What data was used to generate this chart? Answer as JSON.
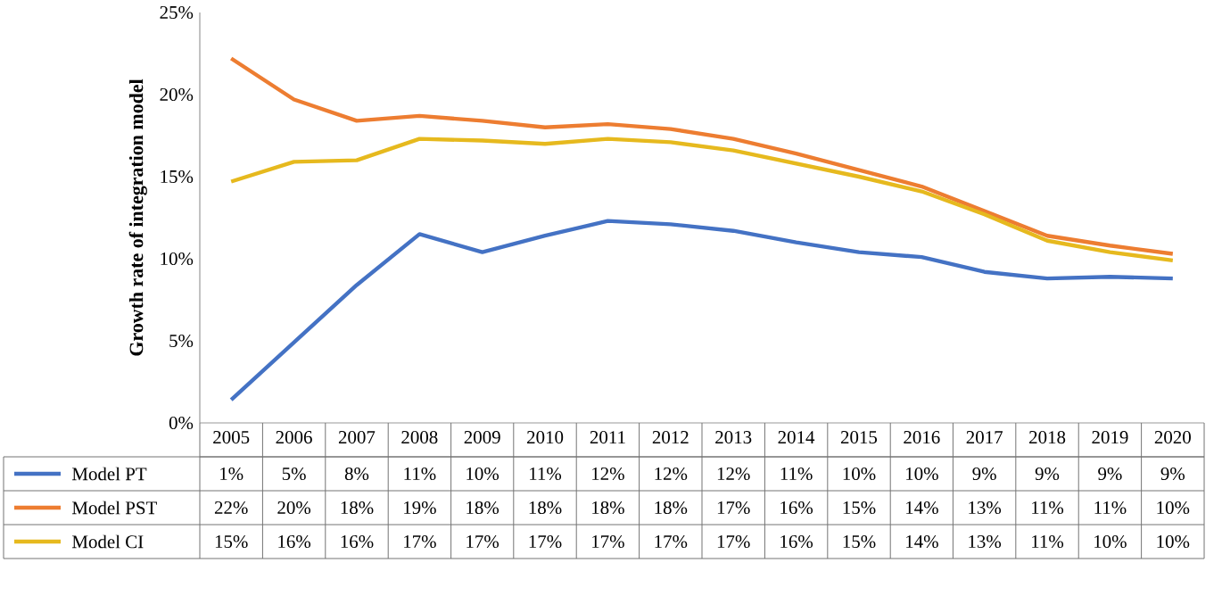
{
  "chart_data": {
    "type": "line",
    "ylabel": "Growth rate of integration model",
    "categories": [
      "2005",
      "2006",
      "2007",
      "2008",
      "2009",
      "2010",
      "2011",
      "2012",
      "2013",
      "2014",
      "2015",
      "2016",
      "2017",
      "2018",
      "2019",
      "2020"
    ],
    "series": [
      {
        "name": "Model PT",
        "color": "#4472c4",
        "values": [
          1.4,
          4.9,
          8.4,
          11.5,
          10.4,
          11.4,
          12.3,
          12.1,
          11.7,
          11.0,
          10.4,
          10.1,
          9.2,
          8.8,
          8.9,
          8.8
        ],
        "value_labels": [
          "1%",
          "5%",
          "8%",
          "11%",
          "10%",
          "11%",
          "12%",
          "12%",
          "12%",
          "11%",
          "10%",
          "10%",
          "9%",
          "9%",
          "9%",
          "9%"
        ]
      },
      {
        "name": "Model PST",
        "color": "#ed7d31",
        "values": [
          22.2,
          19.7,
          18.4,
          18.7,
          18.4,
          18.0,
          18.2,
          17.9,
          17.3,
          16.4,
          15.4,
          14.4,
          12.9,
          11.4,
          10.8,
          10.3
        ],
        "value_labels": [
          "22%",
          "20%",
          "18%",
          "19%",
          "18%",
          "18%",
          "18%",
          "18%",
          "17%",
          "16%",
          "15%",
          "14%",
          "13%",
          "11%",
          "11%",
          "10%"
        ]
      },
      {
        "name": "Model CI",
        "color": "#e6b91e",
        "values": [
          14.7,
          15.9,
          16.0,
          17.3,
          17.2,
          17.0,
          17.3,
          17.1,
          16.6,
          15.8,
          15.0,
          14.1,
          12.7,
          11.1,
          10.4,
          9.9
        ],
        "value_labels": [
          "15%",
          "16%",
          "16%",
          "17%",
          "17%",
          "17%",
          "17%",
          "17%",
          "17%",
          "16%",
          "15%",
          "14%",
          "13%",
          "11%",
          "10%",
          "10%"
        ]
      }
    ],
    "ylim": [
      0,
      25
    ],
    "yticks": [
      {
        "value": 0,
        "label": "0%"
      },
      {
        "value": 5,
        "label": "5%"
      },
      {
        "value": 10,
        "label": "10%"
      },
      {
        "value": 15,
        "label": "15%"
      },
      {
        "value": 20,
        "label": "20%"
      },
      {
        "value": 25,
        "label": "25%"
      }
    ],
    "legend": "bottom",
    "grid": false,
    "marker": "none",
    "line_style": "solid"
  }
}
